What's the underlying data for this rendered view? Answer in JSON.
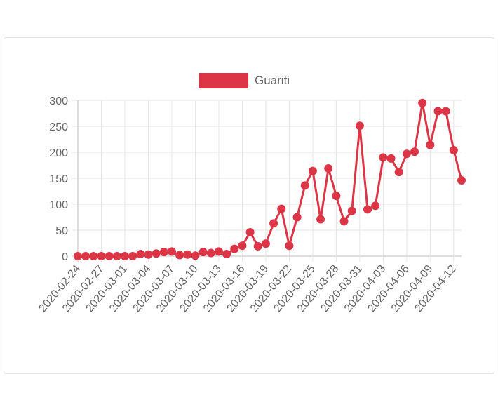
{
  "chart_data": {
    "type": "line",
    "legend": {
      "label": "Guariti",
      "position": "top"
    },
    "series": [
      {
        "name": "Guariti",
        "color": "#dc3545",
        "values": [
          0,
          0,
          0,
          0,
          0,
          0,
          0,
          0,
          4,
          3,
          5,
          8,
          9,
          2,
          3,
          1,
          8,
          6,
          9,
          4,
          14,
          20,
          46,
          19,
          24,
          63,
          91,
          20,
          75,
          136,
          164,
          71,
          169,
          116,
          67,
          87,
          251,
          90,
          97,
          190,
          188,
          162,
          197,
          201,
          295,
          214,
          279,
          279,
          204,
          146
        ]
      }
    ],
    "x": [
      "2020-02-24",
      "2020-02-25",
      "2020-02-26",
      "2020-02-27",
      "2020-02-28",
      "2020-02-29",
      "2020-03-01",
      "2020-03-02",
      "2020-03-03",
      "2020-03-04",
      "2020-03-05",
      "2020-03-06",
      "2020-03-07",
      "2020-03-08",
      "2020-03-09",
      "2020-03-10",
      "2020-03-11",
      "2020-03-12",
      "2020-03-13",
      "2020-03-14",
      "2020-03-15",
      "2020-03-16",
      "2020-03-17",
      "2020-03-18",
      "2020-03-19",
      "2020-03-20",
      "2020-03-21",
      "2020-03-22",
      "2020-03-23",
      "2020-03-24",
      "2020-03-25",
      "2020-03-26",
      "2020-03-27",
      "2020-03-28",
      "2020-03-29",
      "2020-03-30",
      "2020-03-31",
      "2020-04-01",
      "2020-04-02",
      "2020-04-03",
      "2020-04-04",
      "2020-04-05",
      "2020-04-06",
      "2020-04-07",
      "2020-04-08",
      "2020-04-09",
      "2020-04-10",
      "2020-04-11",
      "2020-04-12",
      "2020-04-13"
    ],
    "x_tick_labels": [
      "2020-02-24",
      "2020-02-27",
      "2020-03-01",
      "2020-03-04",
      "2020-03-07",
      "2020-03-10",
      "2020-03-13",
      "2020-03-16",
      "2020-03-19",
      "2020-03-22",
      "2020-03-25",
      "2020-03-28",
      "2020-03-31",
      "2020-04-03",
      "2020-04-06",
      "2020-04-09",
      "2020-04-12"
    ],
    "y_ticks": [
      0,
      50,
      100,
      150,
      200,
      250,
      300
    ],
    "ylim": [
      0,
      300
    ],
    "grid": true,
    "title": "",
    "xlabel": "",
    "ylabel": ""
  }
}
